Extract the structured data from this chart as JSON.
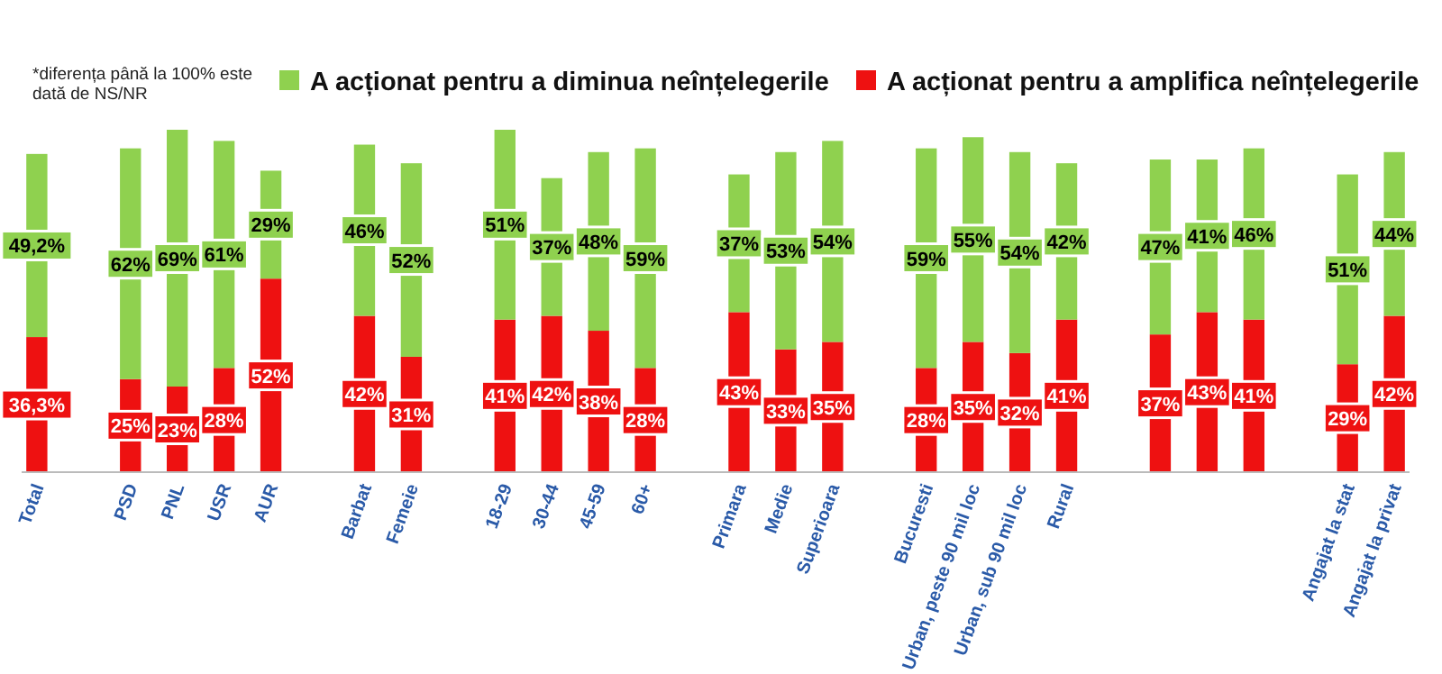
{
  "chart_data": {
    "type": "bar",
    "stacked": true,
    "legend": "top right",
    "annotations": [
      "*diferența până la 100% este dată de NS/NR"
    ],
    "categories": [
      "Total",
      null,
      "PSD",
      "PNL",
      "USR",
      "AUR",
      null,
      "Barbat",
      "Femeie",
      null,
      "18-29",
      "30-44",
      "45-59",
      "60+",
      null,
      "Primara",
      "Medie",
      "Superioara",
      null,
      "Bucuresti",
      "Urban, peste 90 mil loc",
      "Urban, sub 90 mil loc",
      "Rural",
      null,
      null,
      null,
      null,
      null,
      "Angajat la stat",
      "Angajat la privat"
    ],
    "series": [
      {
        "name": "A acționat pentru a amplifica neînțelegerile",
        "color": "#ee1111",
        "values": [
          36.3,
          null,
          25,
          23,
          28,
          52,
          null,
          42,
          31,
          null,
          41,
          42,
          38,
          28,
          null,
          43,
          33,
          35,
          null,
          28,
          35,
          32,
          41,
          null,
          37,
          43,
          41,
          null,
          29,
          42
        ],
        "value_labels": [
          "36,3%",
          null,
          "25%",
          "23%",
          "28%",
          "52%",
          null,
          "42%",
          "31%",
          null,
          "41%",
          "42%",
          "38%",
          "28%",
          null,
          "43%",
          "33%",
          "35%",
          null,
          "28%",
          "35%",
          "32%",
          "41%",
          null,
          "37%",
          "43%",
          "41%",
          null,
          "29%",
          "42%"
        ]
      },
      {
        "name": "A acționat pentru a diminua neînțelegerile",
        "color": "#8fd14f",
        "values": [
          49.2,
          null,
          62,
          69,
          61,
          29,
          null,
          46,
          52,
          null,
          51,
          37,
          48,
          59,
          null,
          37,
          53,
          54,
          null,
          59,
          55,
          54,
          42,
          null,
          47,
          41,
          46,
          null,
          51,
          44
        ],
        "value_labels": [
          "49,2%",
          null,
          "62%",
          "69%",
          "61%",
          "29%",
          null,
          "46%",
          "52%",
          null,
          "51%",
          "37%",
          "48%",
          "59%",
          null,
          "37%",
          "53%",
          "54%",
          null,
          "59%",
          "55%",
          "54%",
          "42%",
          null,
          "47%",
          "41%",
          "46%",
          null,
          "51%",
          "44%"
        ]
      }
    ]
  }
}
